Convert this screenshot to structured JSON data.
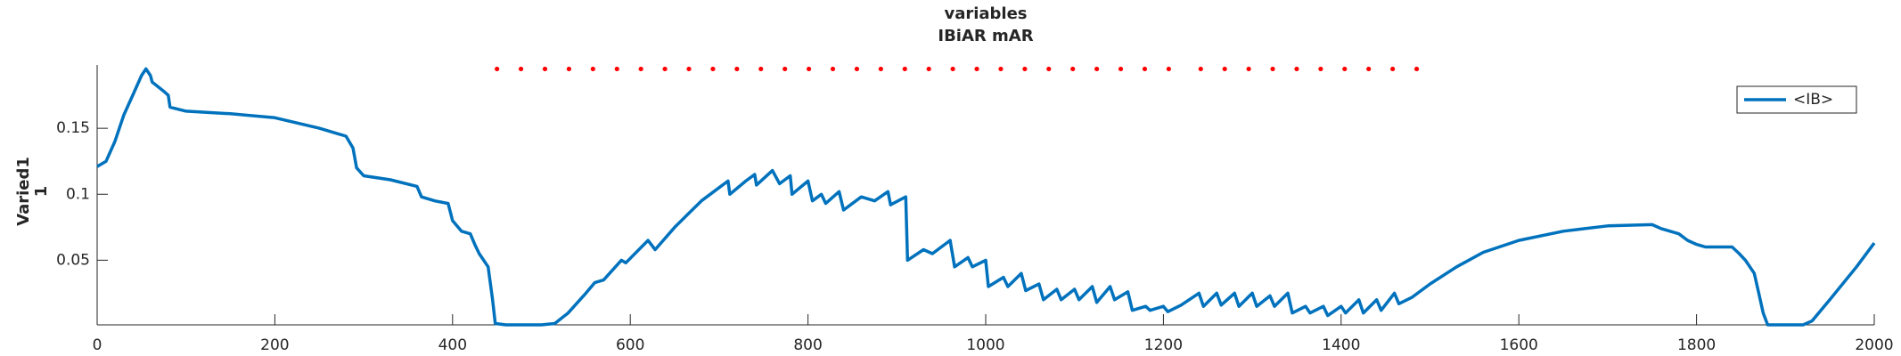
{
  "chart_data": {
    "type": "line",
    "title": [
      "variables",
      "IBiAR mAR"
    ],
    "ylabel": [
      "Varied1",
      "1"
    ],
    "xlim": [
      0,
      2000
    ],
    "xticks": [
      0,
      200,
      400,
      600,
      800,
      1000,
      1200,
      1400,
      1600,
      1800,
      2000
    ],
    "ylim": [
      0.001,
      0.198
    ],
    "yticks": [
      0.05,
      0.1,
      0.15
    ],
    "grid": false,
    "legend": "upper right",
    "series": [
      {
        "name": "<IB>",
        "color": "#0072bd",
        "style": "line",
        "x": [
          0,
          10,
          20,
          30,
          40,
          50,
          55,
          60,
          62,
          75,
          80,
          82,
          100,
          150,
          200,
          250,
          280,
          288,
          292,
          300,
          330,
          360,
          365,
          380,
          395,
          400,
          410,
          420,
          425,
          430,
          440,
          445,
          448,
          460,
          500,
          515,
          530,
          550,
          560,
          570,
          590,
          595,
          620,
          628,
          650,
          665,
          680,
          700,
          710,
          712,
          730,
          740,
          742,
          760,
          768,
          780,
          782,
          800,
          805,
          815,
          820,
          835,
          840,
          860,
          875,
          890,
          893,
          910,
          912,
          930,
          940,
          960,
          965,
          980,
          985,
          1000,
          1003,
          1020,
          1025,
          1040,
          1045,
          1060,
          1065,
          1080,
          1085,
          1100,
          1105,
          1120,
          1125,
          1140,
          1145,
          1160,
          1165,
          1180,
          1185,
          1200,
          1205,
          1220,
          1240,
          1245,
          1260,
          1265,
          1280,
          1285,
          1300,
          1305,
          1320,
          1325,
          1340,
          1345,
          1360,
          1365,
          1380,
          1385,
          1400,
          1405,
          1420,
          1425,
          1440,
          1445,
          1460,
          1465,
          1480,
          1500,
          1530,
          1560,
          1600,
          1650,
          1700,
          1750,
          1760,
          1780,
          1790,
          1800,
          1810,
          1840,
          1848,
          1855,
          1865,
          1870,
          1875,
          1880,
          1920,
          1930,
          1950,
          1980,
          2000
        ],
        "values": [
          0.121,
          0.125,
          0.14,
          0.16,
          0.175,
          0.19,
          0.195,
          0.19,
          0.185,
          0.178,
          0.175,
          0.166,
          0.163,
          0.161,
          0.158,
          0.15,
          0.144,
          0.135,
          0.12,
          0.114,
          0.111,
          0.106,
          0.098,
          0.095,
          0.093,
          0.08,
          0.072,
          0.07,
          0.062,
          0.055,
          0.045,
          0.02,
          0.002,
          0.001,
          0.001,
          0.002,
          0.01,
          0.025,
          0.033,
          0.035,
          0.05,
          0.048,
          0.065,
          0.058,
          0.075,
          0.085,
          0.095,
          0.105,
          0.11,
          0.1,
          0.11,
          0.115,
          0.107,
          0.118,
          0.108,
          0.114,
          0.1,
          0.11,
          0.095,
          0.1,
          0.093,
          0.102,
          0.088,
          0.098,
          0.095,
          0.102,
          0.092,
          0.098,
          0.05,
          0.058,
          0.055,
          0.065,
          0.045,
          0.052,
          0.045,
          0.05,
          0.03,
          0.037,
          0.03,
          0.04,
          0.027,
          0.032,
          0.02,
          0.028,
          0.02,
          0.028,
          0.02,
          0.03,
          0.018,
          0.03,
          0.02,
          0.026,
          0.012,
          0.015,
          0.012,
          0.015,
          0.011,
          0.016,
          0.025,
          0.015,
          0.025,
          0.016,
          0.025,
          0.015,
          0.025,
          0.015,
          0.023,
          0.015,
          0.025,
          0.01,
          0.015,
          0.01,
          0.015,
          0.008,
          0.015,
          0.01,
          0.02,
          0.01,
          0.02,
          0.012,
          0.025,
          0.017,
          0.022,
          0.032,
          0.045,
          0.056,
          0.065,
          0.072,
          0.076,
          0.077,
          0.074,
          0.07,
          0.065,
          0.062,
          0.06,
          0.06,
          0.055,
          0.05,
          0.04,
          0.025,
          0.01,
          0.001,
          0.001,
          0.004,
          0.02,
          0.045,
          0.063
        ]
      },
      {
        "color": "#ff0000",
        "style": "dots",
        "x": [
          450,
          477,
          504,
          531,
          558,
          585,
          612,
          639,
          666,
          693,
          720,
          747,
          774,
          801,
          828,
          855,
          882,
          909,
          936,
          963,
          990,
          1017,
          1044,
          1071,
          1098,
          1125,
          1152,
          1179,
          1206,
          1242,
          1269,
          1296,
          1323,
          1350,
          1377,
          1404,
          1431,
          1458,
          1485
        ],
        "values": [
          0.195,
          0.195,
          0.195,
          0.195,
          0.195,
          0.195,
          0.195,
          0.195,
          0.195,
          0.195,
          0.195,
          0.195,
          0.195,
          0.195,
          0.195,
          0.195,
          0.195,
          0.195,
          0.195,
          0.195,
          0.195,
          0.195,
          0.195,
          0.195,
          0.195,
          0.195,
          0.195,
          0.195,
          0.195,
          0.195,
          0.195,
          0.195,
          0.195,
          0.195,
          0.195,
          0.195,
          0.195,
          0.195,
          0.195
        ]
      }
    ]
  }
}
